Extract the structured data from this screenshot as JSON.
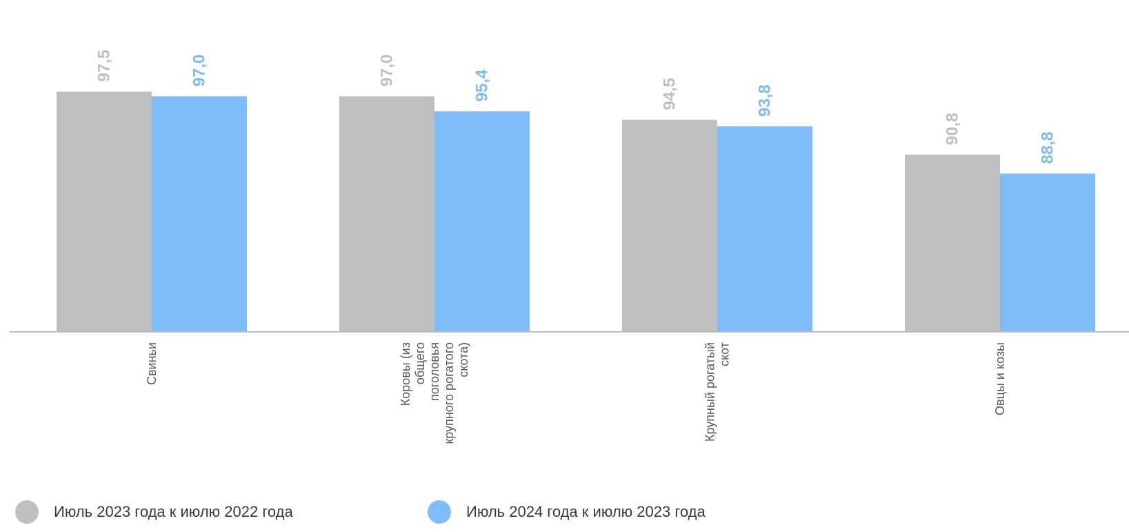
{
  "chart_data": {
    "type": "bar",
    "categories": [
      "Свиньи",
      "Коровы (из общего поголовья крупного рогатого скота)",
      "Крупный рогатый скот",
      "Овцы и козы"
    ],
    "category_label_lines": [
      [
        "Свиньи"
      ],
      [
        "Коровы (из",
        "общего",
        "поголовья",
        "крупного рогатого",
        "скота)"
      ],
      [
        "Крупный рогатый",
        "скот"
      ],
      [
        "Овцы и козы"
      ]
    ],
    "series": [
      {
        "name": "Июль 2023 года  к июлю 2022 года",
        "values": [
          97.5,
          97.0,
          94.5,
          90.8
        ],
        "labels": [
          "97,5",
          "97,0",
          "94,5",
          "90,8"
        ],
        "color": "#bfbfbf"
      },
      {
        "name": "Июль 2024 года к июлю 2023 года",
        "values": [
          97.0,
          95.4,
          93.8,
          88.8
        ],
        "labels": [
          "97,0",
          "95,4",
          "93,8",
          "88,8"
        ],
        "color": "#7fbbf9"
      }
    ],
    "ylim": [
      72,
      100
    ],
    "grid": false,
    "legend_position": "bottom"
  }
}
